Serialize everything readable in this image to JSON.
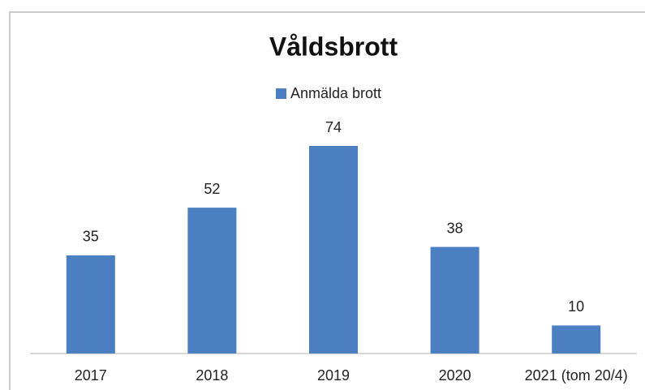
{
  "chart_data": {
    "type": "bar",
    "title": "Våldsbrott",
    "categories": [
      "2017",
      "2018",
      "2019",
      "2020",
      "2021 (tom 20/4)"
    ],
    "series": [
      {
        "name": "Anmälda brott",
        "color": "#4a7fc1",
        "values": [
          35,
          52,
          74,
          38,
          10
        ]
      }
    ],
    "legend": "top"
  }
}
